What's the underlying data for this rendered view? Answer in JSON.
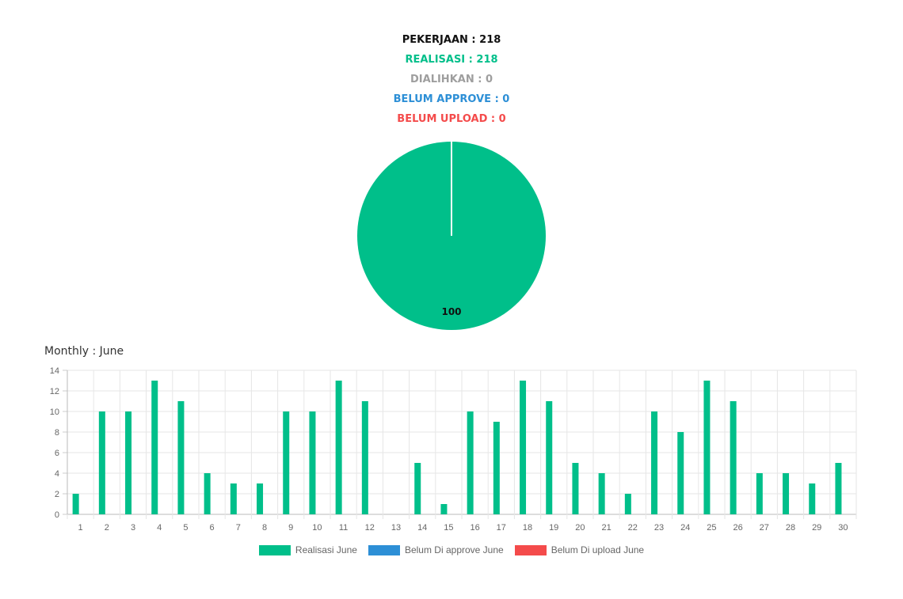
{
  "summary": {
    "pekerjaan": "PEKERJAAN : 218",
    "realisasi": "REALISASI : 218",
    "dialihkan": "DIALIHKAN : 0",
    "belum_approve": "BELUM APPROVE : 0",
    "belum_upload": "BELUM UPLOAD : 0"
  },
  "colors": {
    "black": "#111111",
    "green": "#00bf8a",
    "gray": "#9e9e9e",
    "blue": "#2d8fd6",
    "red": "#f44b4b"
  },
  "monthly_title": "Monthly : June",
  "chart_data": [
    {
      "type": "pie",
      "slices": [
        {
          "name": "Realisasi",
          "value": 100,
          "color": "#00bf8a"
        }
      ],
      "data_labels": [
        "100"
      ]
    },
    {
      "type": "bar",
      "categories": [
        "1",
        "2",
        "3",
        "4",
        "5",
        "6",
        "7",
        "8",
        "9",
        "10",
        "11",
        "12",
        "13",
        "14",
        "15",
        "16",
        "17",
        "18",
        "19",
        "20",
        "21",
        "22",
        "23",
        "24",
        "25",
        "26",
        "27",
        "28",
        "29",
        "30"
      ],
      "series": [
        {
          "name": "Realisasi June",
          "color": "#00bf8a",
          "values": [
            2,
            10,
            10,
            13,
            11,
            4,
            3,
            3,
            10,
            10,
            13,
            11,
            0,
            5,
            1,
            10,
            9,
            13,
            11,
            5,
            4,
            2,
            10,
            8,
            13,
            11,
            4,
            4,
            3,
            5
          ]
        },
        {
          "name": "Belum Di approve June",
          "color": "#2d8fd6",
          "values": [
            0,
            0,
            0,
            0,
            0,
            0,
            0,
            0,
            0,
            0,
            0,
            0,
            0,
            0,
            0,
            0,
            0,
            0,
            0,
            0,
            0,
            0,
            0,
            0,
            0,
            0,
            0,
            0,
            0,
            0
          ]
        },
        {
          "name": "Belum Di upload June",
          "color": "#f44b4b",
          "values": [
            0,
            0,
            0,
            0,
            0,
            0,
            0,
            0,
            0,
            0,
            0,
            0,
            0,
            0,
            0,
            0,
            0,
            0,
            0,
            0,
            0,
            0,
            0,
            0,
            0,
            0,
            0,
            0,
            0,
            0
          ]
        }
      ],
      "ylim": [
        0,
        14
      ],
      "yticks": [
        "0",
        "2",
        "4",
        "6",
        "8",
        "10",
        "12",
        "14"
      ],
      "grid": true,
      "legend": "bottom"
    }
  ]
}
